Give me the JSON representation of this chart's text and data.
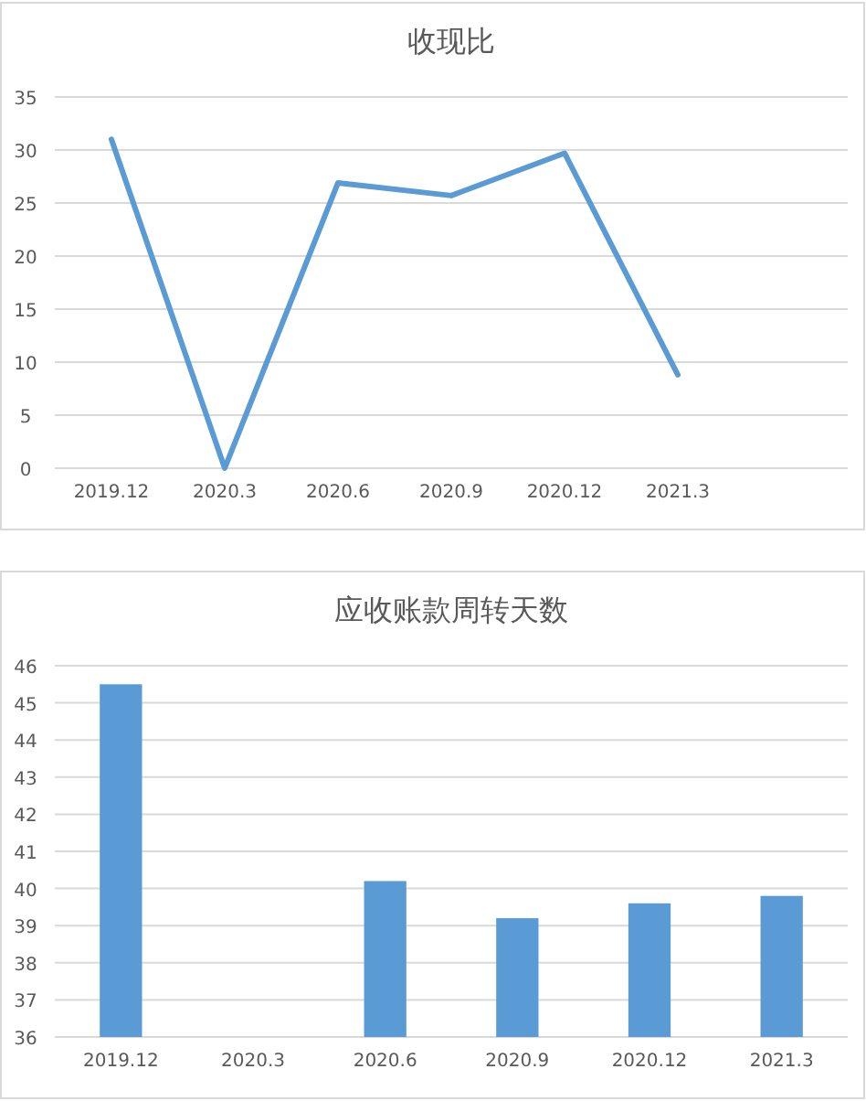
{
  "chart_data": [
    {
      "type": "line",
      "title": "收现比",
      "categories": [
        "2019.12",
        "2020.3",
        "2020.6",
        "2020.9",
        "2020.12",
        "2021.3",
        null
      ],
      "values": [
        31.0,
        0,
        26.9,
        25.7,
        29.7,
        8.8,
        null
      ],
      "color": "#5b9bd5",
      "ylim": [
        0,
        35
      ],
      "yticks": [
        0,
        5,
        10,
        15,
        20,
        25,
        30,
        35
      ],
      "grid": "y"
    },
    {
      "type": "bar",
      "title": "应收账款周转天数",
      "categories": [
        "2019.12",
        "2020.3",
        "2020.6",
        "2020.9",
        "2020.12",
        "2021.3"
      ],
      "values": [
        45.5,
        null,
        40.2,
        39.2,
        39.6,
        39.8
      ],
      "color": "#5b9bd5",
      "ylim": [
        36,
        46
      ],
      "yticks": [
        36,
        37,
        38,
        39,
        40,
        41,
        42,
        43,
        44,
        45,
        46
      ],
      "grid": "y"
    }
  ]
}
